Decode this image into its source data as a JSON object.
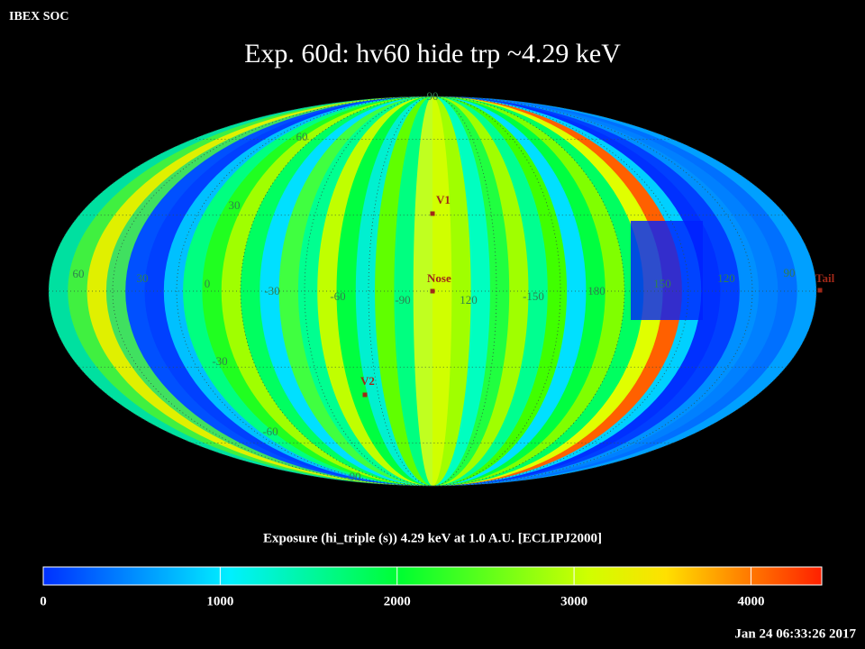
{
  "header": "IBEX SOC",
  "title": "Exp.   60d: hv60 hide trp ~4.29 keV",
  "colorbar": {
    "label": "Exposure (hi_triple (s))  4.29 keV at 1.0 A.U. [ECLIPJ2000]",
    "range": [
      0,
      4400
    ],
    "ticks": [
      0,
      1000,
      2000,
      3000,
      4000
    ]
  },
  "timestamp": "Jan 24 06:33:26 2017",
  "map": {
    "longitude_labels": [
      "60",
      "30",
      "0",
      "-30",
      "-60",
      "-90",
      "120",
      "-150",
      "180",
      "150",
      "120",
      "90"
    ],
    "latitude_labels": [
      "90",
      "60",
      "30",
      "-30",
      "-60",
      "-90"
    ],
    "markers": [
      "V1",
      "Nose",
      "V2",
      "Tail"
    ]
  }
}
